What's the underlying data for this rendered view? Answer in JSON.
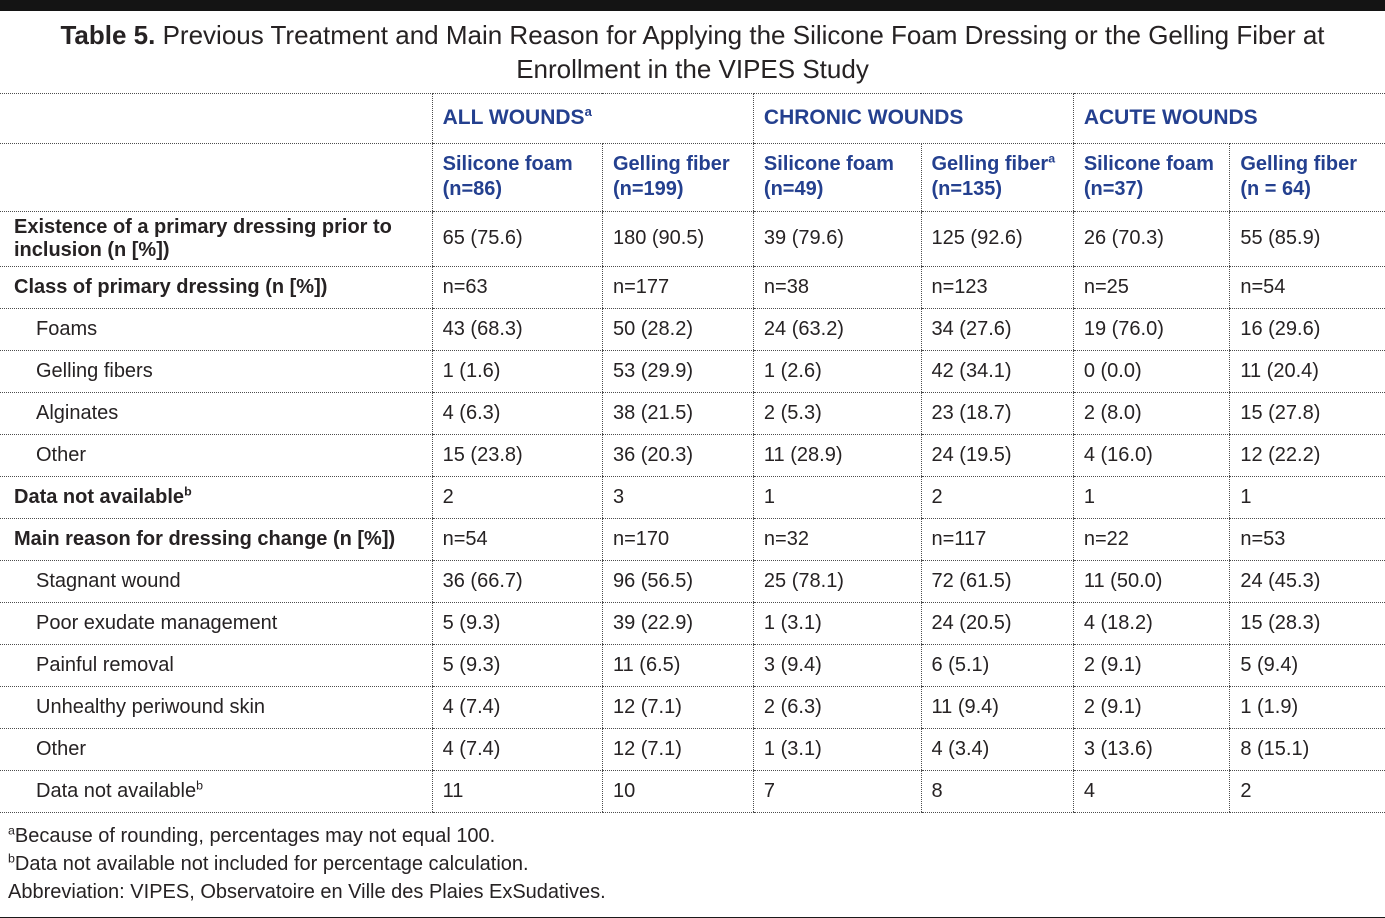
{
  "colors": {
    "header_blue": "#24408f",
    "body_text": "#262223",
    "top_bar": "#141414"
  },
  "title": {
    "label": "Table 5.",
    "text": "Previous Treatment and Main Reason for Applying the Silicone Foam Dressing or the Gelling Fiber at Enrollment in the VIPES Study"
  },
  "header": {
    "groups": [
      {
        "label": "ALL WOUNDS",
        "sup": "a"
      },
      {
        "label": "CHRONIC WOUNDS",
        "sup": ""
      },
      {
        "label": "ACUTE WOUNDS",
        "sup": ""
      }
    ],
    "columns": [
      {
        "line1": "Silicone foam",
        "sup": "",
        "line2": "(n=86)"
      },
      {
        "line1": "Gelling fiber",
        "sup": "",
        "line2": "(n=199)"
      },
      {
        "line1": "Silicone foam",
        "sup": "",
        "line2": "(n=49)"
      },
      {
        "line1": "Gelling fiber",
        "sup": "a",
        "line2": "(n=135)"
      },
      {
        "line1": "Silicone foam",
        "sup": "",
        "line2": "(n=37)"
      },
      {
        "line1": "Gelling fiber",
        "sup": "",
        "line2": "(n = 64)"
      }
    ]
  },
  "rows": [
    {
      "label": "Existence of a primary dressing prior to inclusion (n [%])",
      "sup": "",
      "style": "group",
      "values": [
        "65 (75.6)",
        "180 (90.5)",
        "39 (79.6)",
        "125 (92.6)",
        "26 (70.3)",
        "55 (85.9)"
      ]
    },
    {
      "label": "Class of primary dressing (n [%])",
      "sup": "",
      "style": "group",
      "values": [
        "n=63",
        "n=177",
        "n=38",
        "n=123",
        "n=25",
        "n=54"
      ]
    },
    {
      "label": "Foams",
      "sup": "",
      "style": "item",
      "values": [
        "43 (68.3)",
        "50 (28.2)",
        "24 (63.2)",
        "34 (27.6)",
        "19 (76.0)",
        "16 (29.6)"
      ]
    },
    {
      "label": "Gelling fibers",
      "sup": "",
      "style": "item",
      "values": [
        "1 (1.6)",
        "53 (29.9)",
        "1 (2.6)",
        "42 (34.1)",
        "0 (0.0)",
        "11 (20.4)"
      ]
    },
    {
      "label": "Alginates",
      "sup": "",
      "style": "item",
      "values": [
        "4 (6.3)",
        "38 (21.5)",
        "2 (5.3)",
        "23 (18.7)",
        "2 (8.0)",
        "15 (27.8)"
      ]
    },
    {
      "label": "Other",
      "sup": "",
      "style": "item",
      "values": [
        "15 (23.8)",
        "36 (20.3)",
        "11 (28.9)",
        "24 (19.5)",
        "4 (16.0)",
        "12 (22.2)"
      ]
    },
    {
      "label": "Data not available",
      "sup": "b",
      "style": "group",
      "values": [
        "2",
        "3",
        "1",
        "2",
        "1",
        "1"
      ]
    },
    {
      "label": "Main reason for dressing change (n [%])",
      "sup": "",
      "style": "group",
      "values": [
        "n=54",
        "n=170",
        "n=32",
        "n=117",
        "n=22",
        "n=53"
      ]
    },
    {
      "label": "Stagnant wound",
      "sup": "",
      "style": "item",
      "values": [
        "36 (66.7)",
        "96 (56.5)",
        "25 (78.1)",
        "72 (61.5)",
        "11 (50.0)",
        "24 (45.3)"
      ]
    },
    {
      "label": "Poor exudate management",
      "sup": "",
      "style": "item",
      "values": [
        "5 (9.3)",
        "39 (22.9)",
        "1 (3.1)",
        "24 (20.5)",
        "4 (18.2)",
        "15 (28.3)"
      ]
    },
    {
      "label": "Painful removal",
      "sup": "",
      "style": "item",
      "values": [
        "5 (9.3)",
        "11 (6.5)",
        "3 (9.4)",
        "6 (5.1)",
        "2 (9.1)",
        "5 (9.4)"
      ]
    },
    {
      "label": "Unhealthy periwound skin",
      "sup": "",
      "style": "item",
      "values": [
        "4 (7.4)",
        "12 (7.1)",
        "2 (6.3)",
        "11 (9.4)",
        "2 (9.1)",
        "1 (1.9)"
      ]
    },
    {
      "label": "Other",
      "sup": "",
      "style": "item",
      "values": [
        "4 (7.4)",
        "12 (7.1)",
        "1 (3.1)",
        "4 (3.4)",
        "3 (13.6)",
        "8 (15.1)"
      ]
    },
    {
      "label": "Data not available",
      "sup": "b",
      "style": "item",
      "values": [
        "11",
        "10",
        "7",
        "8",
        "4",
        "2"
      ]
    }
  ],
  "footnotes": [
    {
      "sup": "a",
      "text": "Because of rounding, percentages may not equal 100."
    },
    {
      "sup": "b",
      "text": "Data not available not included for percentage calculation."
    },
    {
      "sup": "",
      "text": "Abbreviation: VIPES, Observatoire en Ville des Plaies ExSudatives."
    }
  ]
}
